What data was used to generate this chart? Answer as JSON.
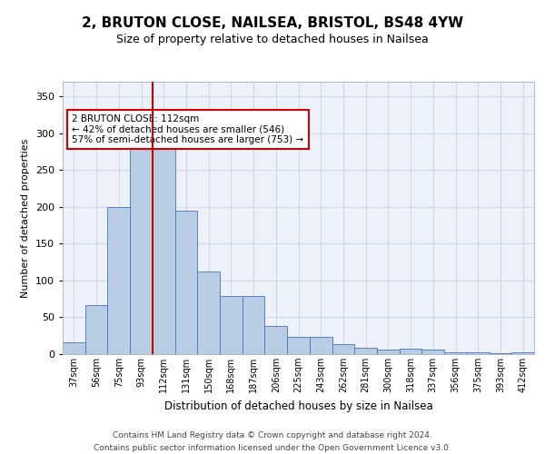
{
  "title_line1": "2, BRUTON CLOSE, NAILSEA, BRISTOL, BS48 4YW",
  "title_line2": "Size of property relative to detached houses in Nailsea",
  "xlabel": "Distribution of detached houses by size in Nailsea",
  "ylabel": "Number of detached properties",
  "categories": [
    "37sqm",
    "56sqm",
    "75sqm",
    "93sqm",
    "112sqm",
    "131sqm",
    "150sqm",
    "168sqm",
    "187sqm",
    "206sqm",
    "225sqm",
    "243sqm",
    "262sqm",
    "281sqm",
    "300sqm",
    "318sqm",
    "337sqm",
    "356sqm",
    "375sqm",
    "393sqm",
    "412sqm"
  ],
  "values": [
    16,
    67,
    200,
    280,
    280,
    195,
    112,
    79,
    79,
    38,
    24,
    24,
    13,
    9,
    6,
    7,
    6,
    3,
    2,
    1,
    2
  ],
  "bar_color": "#b8cce4",
  "bar_edge_color": "#4472c4",
  "property_line_index": 4,
  "property_line_color": "#cc0000",
  "annotation_text": "2 BRUTON CLOSE: 112sqm\n← 42% of detached houses are smaller (546)\n57% of semi-detached houses are larger (753) →",
  "annotation_box_color": "#ffffff",
  "annotation_box_edge_color": "#cc0000",
  "ylim": [
    0,
    370
  ],
  "yticks": [
    0,
    50,
    100,
    150,
    200,
    250,
    300,
    350
  ],
  "footer_text": "Contains HM Land Registry data © Crown copyright and database right 2024.\nContains public sector information licensed under the Open Government Licence v3.0.",
  "background_color": "#ffffff",
  "grid_color": "#ccd6e8",
  "ax_bg_color": "#edf2fa"
}
